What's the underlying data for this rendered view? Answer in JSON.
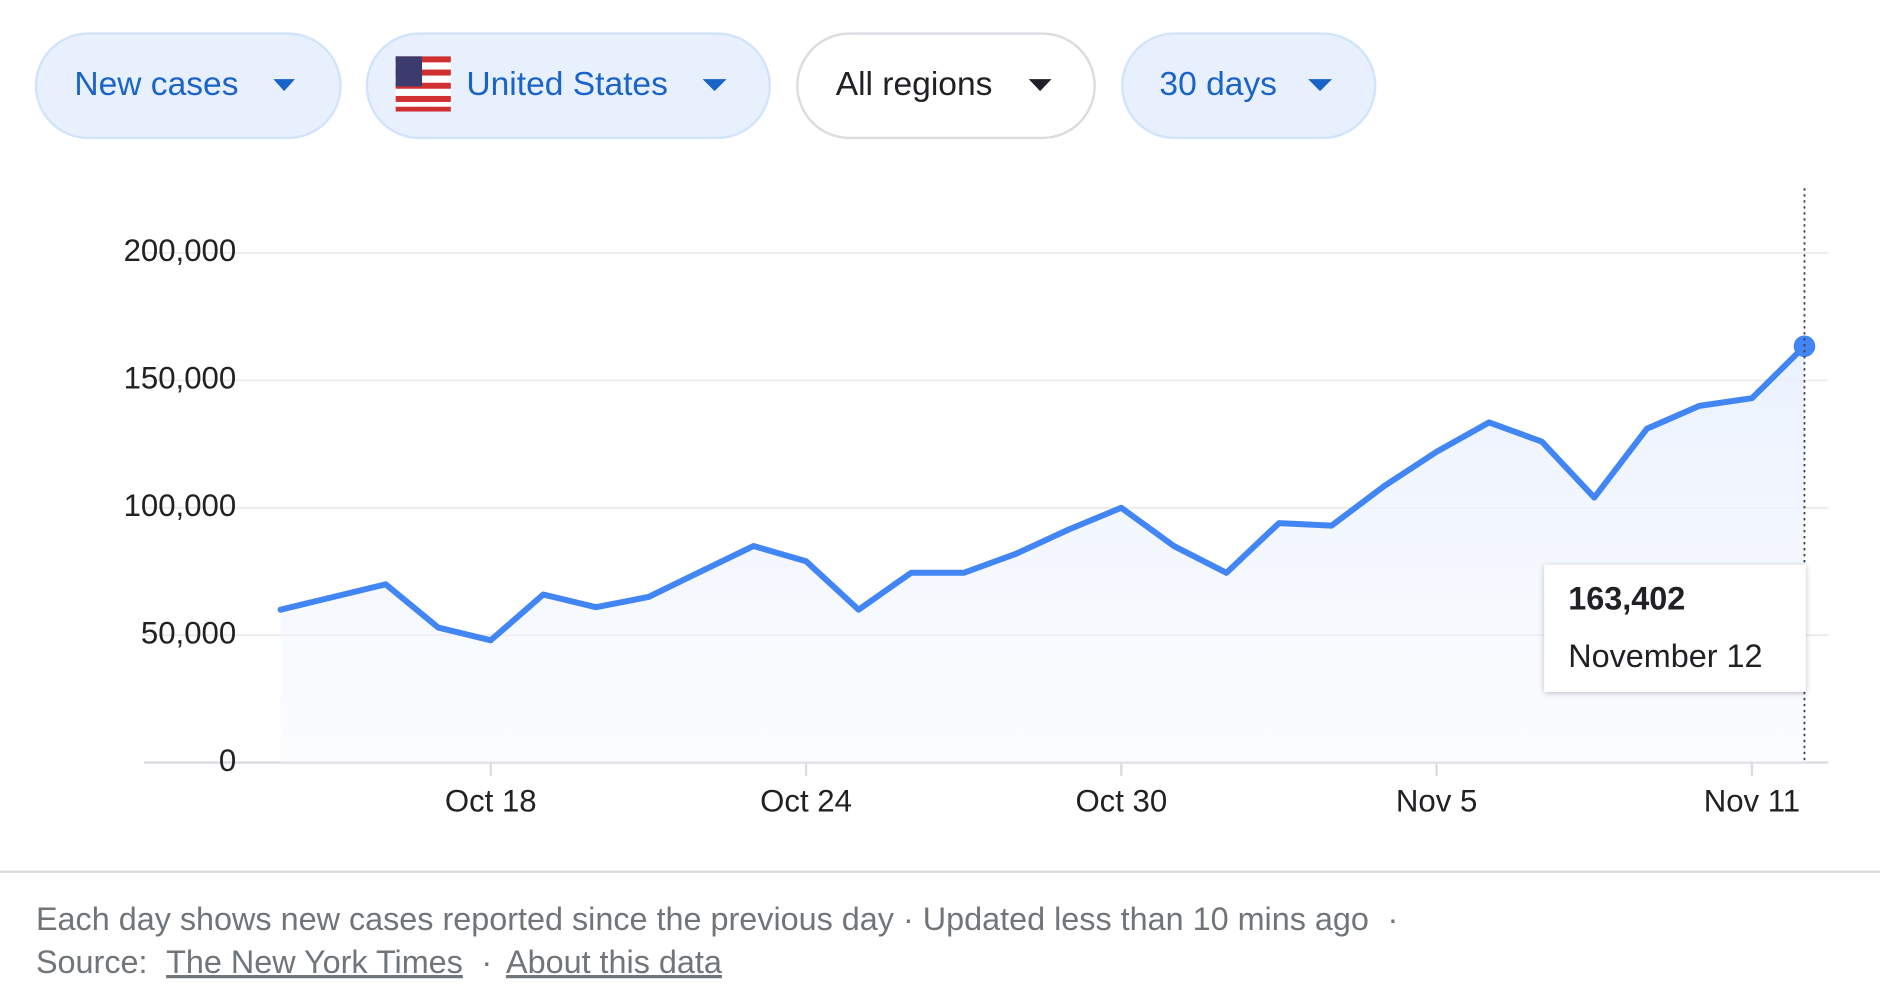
{
  "filters": [
    "New cases",
    "United States",
    "All regions",
    "30 days"
  ],
  "chart_data": {
    "type": "line",
    "categories": [
      null,
      null,
      null,
      null,
      "Oct 18",
      null,
      null,
      null,
      null,
      null,
      "Oct 24",
      null,
      null,
      null,
      null,
      null,
      "Oct 30",
      null,
      null,
      null,
      null,
      null,
      "Nov 5",
      null,
      null,
      null,
      null,
      null,
      "Nov 11",
      null
    ],
    "values": [
      60000,
      65000,
      70000,
      53000,
      48000,
      66000,
      61000,
      65000,
      75000,
      85000,
      79000,
      60000,
      74500,
      74500,
      82000,
      91500,
      100000,
      85000,
      74500,
      94000,
      93000,
      108500,
      122000,
      133500,
      126000,
      104000,
      131000,
      140000,
      143000,
      163402
    ],
    "color": "#4285f4",
    "ylim": [
      0,
      200000
    ],
    "yticks": [
      0,
      {
        "value": 50000,
        "label": "50,000"
      },
      {
        "value": 100000,
        "label": "100,000"
      },
      {
        "value": 150000,
        "label": "150,000"
      },
      {
        "value": 200000,
        "label": "200,000"
      }
    ],
    "grid": true
  },
  "tooltip": {
    "value": "163,402",
    "date": "November 12"
  },
  "footer": {
    "note": "Each day shows new cases reported since the previous day",
    "updated": "Updated less than 10 mins ago",
    "separator": "·",
    "source_label": "Source:",
    "source_link": "The New York Times",
    "about_link": "About this data"
  }
}
